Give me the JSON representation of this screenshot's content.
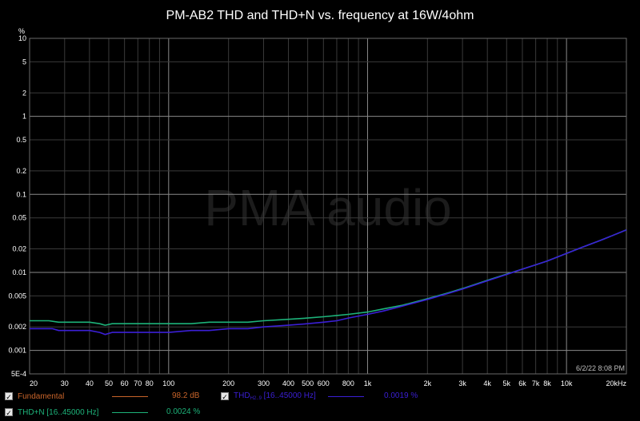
{
  "chart_data": {
    "type": "line",
    "title": "PM-AB2 THD and THD+N vs. frequency at 16W/4ohm",
    "ylabel_unit": "%",
    "xscale": "log",
    "yscale": "log",
    "xlim": [
      20,
      20000
    ],
    "ylim": [
      0.0005,
      10
    ],
    "x_ticks": [
      20,
      30,
      40,
      50,
      60,
      70,
      80,
      100,
      200,
      300,
      400,
      500,
      600,
      800,
      1000,
      2000,
      3000,
      4000,
      5000,
      6000,
      7000,
      8000,
      10000,
      20000
    ],
    "x_tick_labels": [
      "20",
      "30",
      "40",
      "50",
      "60",
      "70",
      "80",
      "100",
      "200",
      "300",
      "400",
      "500",
      "600",
      "800",
      "1k",
      "2k",
      "3k",
      "4k",
      "5k",
      "6k",
      "7k",
      "8k",
      "10k",
      "20kHz"
    ],
    "y_ticks": [
      0.0005,
      0.001,
      0.002,
      0.005,
      0.01,
      0.02,
      0.05,
      0.1,
      0.2,
      0.5,
      1,
      2,
      5,
      10
    ],
    "y_tick_labels": [
      "5E-4",
      "0.001",
      "0.002",
      "0.005",
      "0.01",
      "0.02",
      "0.05",
      "0.1",
      "0.2",
      "0.5",
      "1",
      "2",
      "5",
      "10"
    ],
    "grid": true,
    "watermark": "PMA audio",
    "timestamp": "6/2/22 8:08 PM",
    "series": [
      {
        "name": "THD+N [16..45000 Hz]",
        "color": "#1db37a",
        "x": [
          20,
          22,
          25,
          28,
          32,
          36,
          40,
          45,
          48,
          52,
          56,
          65,
          80,
          100,
          130,
          160,
          200,
          250,
          300,
          400,
          500,
          600,
          700,
          800,
          1000,
          1200,
          1500,
          2000,
          2500,
          3000,
          4000,
          5000,
          6000,
          7000,
          8000,
          10000,
          12000,
          15000,
          20000
        ],
        "y": [
          0.0024,
          0.0024,
          0.0024,
          0.0023,
          0.0023,
          0.0023,
          0.0023,
          0.0022,
          0.0021,
          0.0022,
          0.0022,
          0.0022,
          0.0022,
          0.0022,
          0.0022,
          0.0023,
          0.0023,
          0.0023,
          0.0024,
          0.0025,
          0.0026,
          0.0027,
          0.0028,
          0.0029,
          0.0031,
          0.0034,
          0.0038,
          0.0046,
          0.0054,
          0.0062,
          0.0079,
          0.0095,
          0.011,
          0.0125,
          0.014,
          0.0175,
          0.021,
          0.026,
          0.035
        ]
      },
      {
        "name": "THD",
        "name_sub": "H2..9",
        "name_suffix": " [16..45000 Hz]",
        "color": "#3b1fd6",
        "x": [
          20,
          22,
          24,
          26,
          28,
          32,
          36,
          40,
          45,
          48,
          52,
          56,
          65,
          80,
          100,
          130,
          160,
          200,
          250,
          300,
          400,
          500,
          600,
          700,
          800,
          1000,
          1200,
          1500,
          2000,
          2500,
          3000,
          4000,
          5000,
          6000,
          7000,
          8000,
          10000,
          12000,
          15000,
          20000
        ],
        "y": [
          0.0019,
          0.0019,
          0.0019,
          0.0019,
          0.0018,
          0.0018,
          0.0018,
          0.0018,
          0.0017,
          0.0016,
          0.0017,
          0.0017,
          0.0017,
          0.0017,
          0.0017,
          0.0018,
          0.0018,
          0.0019,
          0.0019,
          0.002,
          0.0021,
          0.0022,
          0.0023,
          0.0024,
          0.0026,
          0.0029,
          0.0032,
          0.0037,
          0.0045,
          0.0053,
          0.0061,
          0.0078,
          0.0094,
          0.011,
          0.0125,
          0.014,
          0.0175,
          0.021,
          0.026,
          0.035
        ]
      }
    ]
  },
  "legend": {
    "items": [
      {
        "label": "Fundamental",
        "value": "98.2 dB",
        "color": "#c8642a",
        "checked": "✓"
      },
      {
        "label_main": "THD",
        "label_sub": "H2..9",
        "label_suffix": " [16..45000 Hz]",
        "value": "0.0019 %",
        "color": "#3b1fd6",
        "checked": "✓"
      },
      {
        "label": "THD+N [16..45000 Hz]",
        "value": "0.0024 %",
        "color": "#1db37a",
        "checked": "✓"
      }
    ]
  }
}
